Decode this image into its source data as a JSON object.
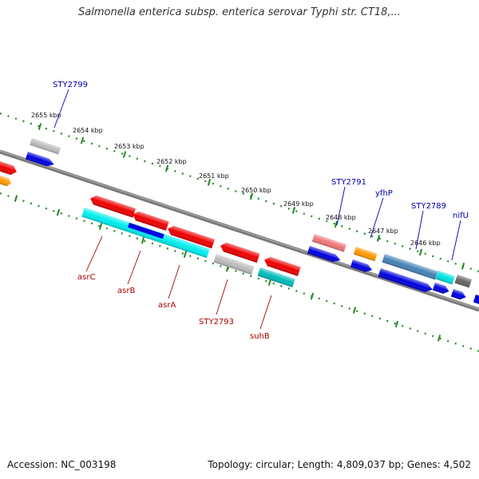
{
  "title": "Salmonella enterica subsp. enterica serovar Typhi str. CT18,...",
  "footer": {
    "accession": "Accession: NC_003198",
    "summary": "Topology: circular; Length: 4,809,037 bp; Genes: 4,502"
  },
  "scale_labels": [
    "2655 kbp",
    "2654 kbp",
    "2653 kbp",
    "2652 kbp",
    "2651 kbp",
    "2650 kbp",
    "2649 kbp",
    "2648 kbp",
    "2647 kbp",
    "2646 kbp"
  ],
  "forward_labels": [
    "STY2799",
    "STY2791",
    "yfhP",
    "STY2789",
    "nifU"
  ],
  "reverse_labels": [
    "asrC",
    "asrB",
    "asrA",
    "STY2793",
    "suhB"
  ],
  "colors": {
    "forward_label": "#0000aa",
    "reverse_label": "#aa0000",
    "backbone": "#777777",
    "tick": "#228822"
  }
}
